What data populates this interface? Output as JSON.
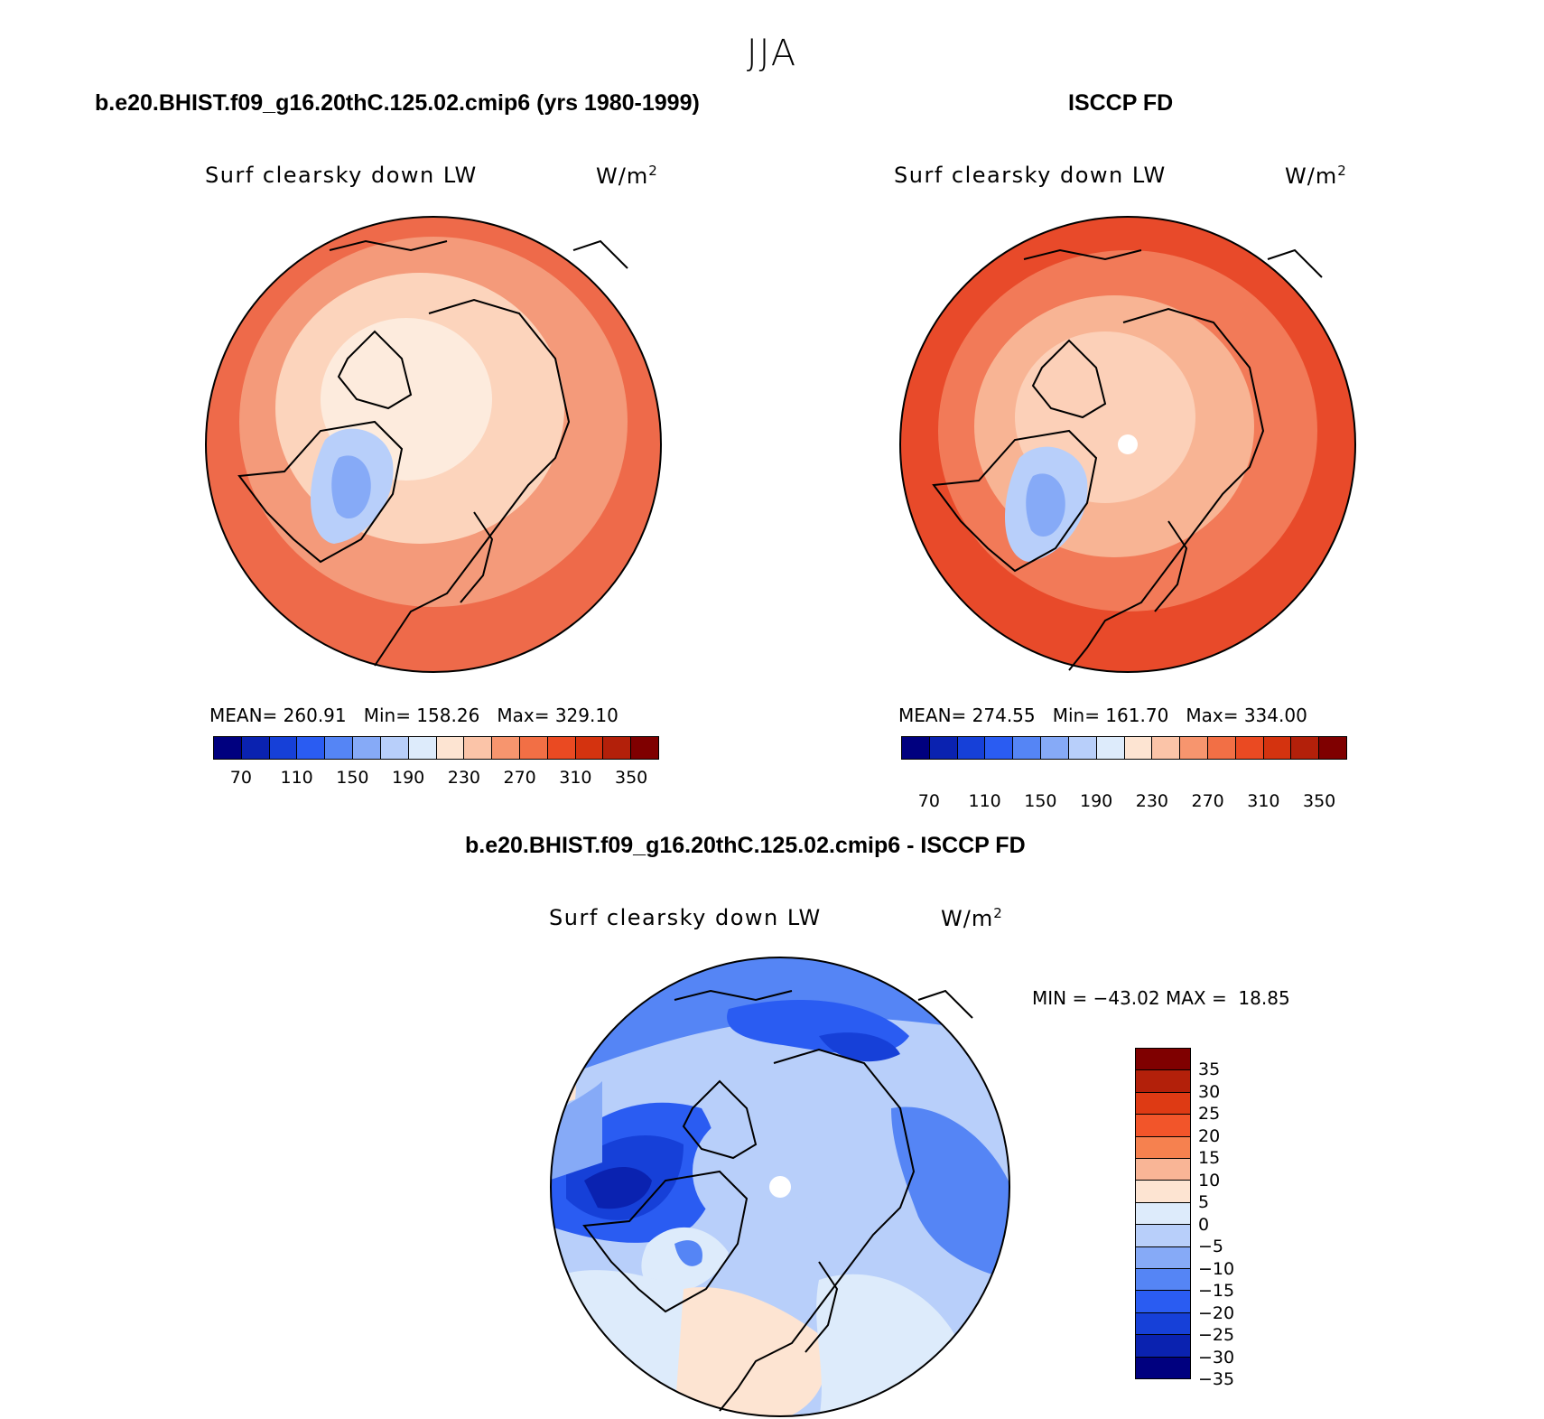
{
  "season": "JJA",
  "panels": [
    {
      "title": "b.e20.BHIST.f09_g16.20thC.125.02.cmip6 (yrs 1980-1999)",
      "variable": "Surf clearsky down LW",
      "units_base": "W/m",
      "units_sup": "2",
      "stats": "MEAN= 260.91   Min= 158.26   Max= 329.10",
      "outer_color": "#ee6a4a",
      "mid_color": "#f49a7a",
      "inner_color": "#fcd4bc",
      "pole_color": "#fdebdd"
    },
    {
      "title": "ISCCP FD",
      "variable": "Surf clearsky down LW",
      "units_base": "W/m",
      "units_sup": "2",
      "stats": "MEAN= 274.55   Min= 161.70   Max= 334.00",
      "outer_color": "#e84a2a",
      "mid_color": "#f27a58",
      "inner_color": "#f8b494",
      "pole_color": "#fcd0b8"
    }
  ],
  "abs_colorbar": {
    "colors": [
      "#00007f",
      "#0a22b0",
      "#1640d8",
      "#2a5cf2",
      "#5585f5",
      "#86aaf7",
      "#b8cffa",
      "#ddebfb",
      "#fde4d2",
      "#fbc4a8",
      "#f7956e",
      "#f26f45",
      "#ea4a22",
      "#d4330f",
      "#b3200a",
      "#7f0000"
    ],
    "labels": [
      "70",
      "110",
      "150",
      "190",
      "230",
      "270",
      "310",
      "350"
    ]
  },
  "diff_panel": {
    "title": "b.e20.BHIST.f09_g16.20thC.125.02.cmip6 - ISCCP FD",
    "variable": "Surf clearsky down LW",
    "units_base": "W/m",
    "units_sup": "2",
    "minmax": "MIN = −43.02 MAX =  18.85"
  },
  "diff_colorbar": {
    "colors": [
      "#7f0000",
      "#b3200a",
      "#de3a14",
      "#f2552a",
      "#f6814f",
      "#f9b596",
      "#fde4d2",
      "#ddebfb",
      "#b8cffa",
      "#86aaf7",
      "#5585f5",
      "#2a5cf2",
      "#1640d8",
      "#0a22b0",
      "#00007f"
    ],
    "labels": [
      "35",
      "30",
      "25",
      "20",
      "15",
      "10",
      "5",
      "0",
      "−5",
      "−10",
      "−15",
      "−20",
      "−25",
      "−30",
      "−35"
    ]
  }
}
